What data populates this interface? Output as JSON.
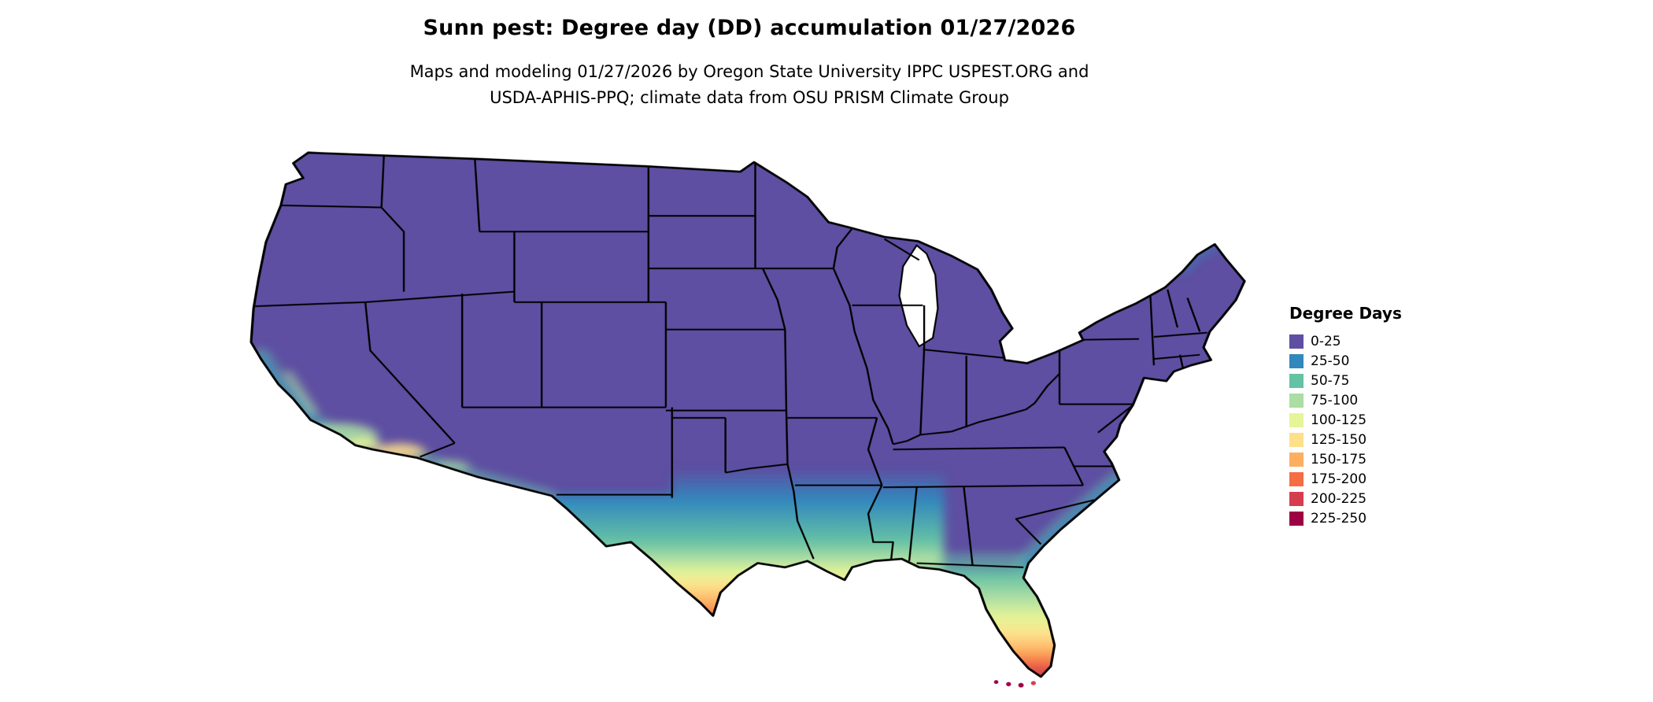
{
  "header": {
    "title": "Sunn pest: Degree day (DD) accumulation 01/27/2026",
    "subtitle_line1": "Maps and modeling 01/27/2026 by Oregon State University IPPC USPEST.ORG and",
    "subtitle_line2": "USDA-APHIS-PPQ; climate data from OSU PRISM Climate Group"
  },
  "legend": {
    "title": "Degree Days",
    "items": [
      {
        "label": "0-25",
        "color": "#5e4fa2"
      },
      {
        "label": "25-50",
        "color": "#3288bd"
      },
      {
        "label": "50-75",
        "color": "#66c2a5"
      },
      {
        "label": "75-100",
        "color": "#abdda4"
      },
      {
        "label": "100-125",
        "color": "#e6f598"
      },
      {
        "label": "125-150",
        "color": "#fee08b"
      },
      {
        "label": "150-175",
        "color": "#fdae61"
      },
      {
        "label": "175-200",
        "color": "#f46d43"
      },
      {
        "label": "200-225",
        "color": "#d53e4f"
      },
      {
        "label": "225-250",
        "color": "#9e0142"
      }
    ]
  },
  "chart_data": {
    "type": "heatmap",
    "title": "Sunn pest: Degree day (DD) accumulation 01/27/2026",
    "unit": "degree days (DD)",
    "legend_title": "Degree Days",
    "legend_position": "right",
    "classes": [
      "0-25",
      "25-50",
      "50-75",
      "75-100",
      "100-125",
      "125-150",
      "150-175",
      "175-200",
      "200-225",
      "225-250"
    ],
    "palette": [
      "#5e4fa2",
      "#3288bd",
      "#66c2a5",
      "#abdda4",
      "#e6f598",
      "#fee08b",
      "#fdae61",
      "#f46d43",
      "#d53e4f",
      "#9e0142"
    ],
    "geography": "contiguous United States with state boundaries",
    "pattern": "Most of the country is in the 0-25 class (purple). Values increase southward: 25-75 across central/south Texas, the Gulf Coast and coastal Carolinas; 75-150 in deep south Texas, coastal Louisiana, north/central Florida and southern California; 150-200 at the lower Rio Grande Valley and south Florida; 200-250 at the Florida tip and Keys."
  }
}
